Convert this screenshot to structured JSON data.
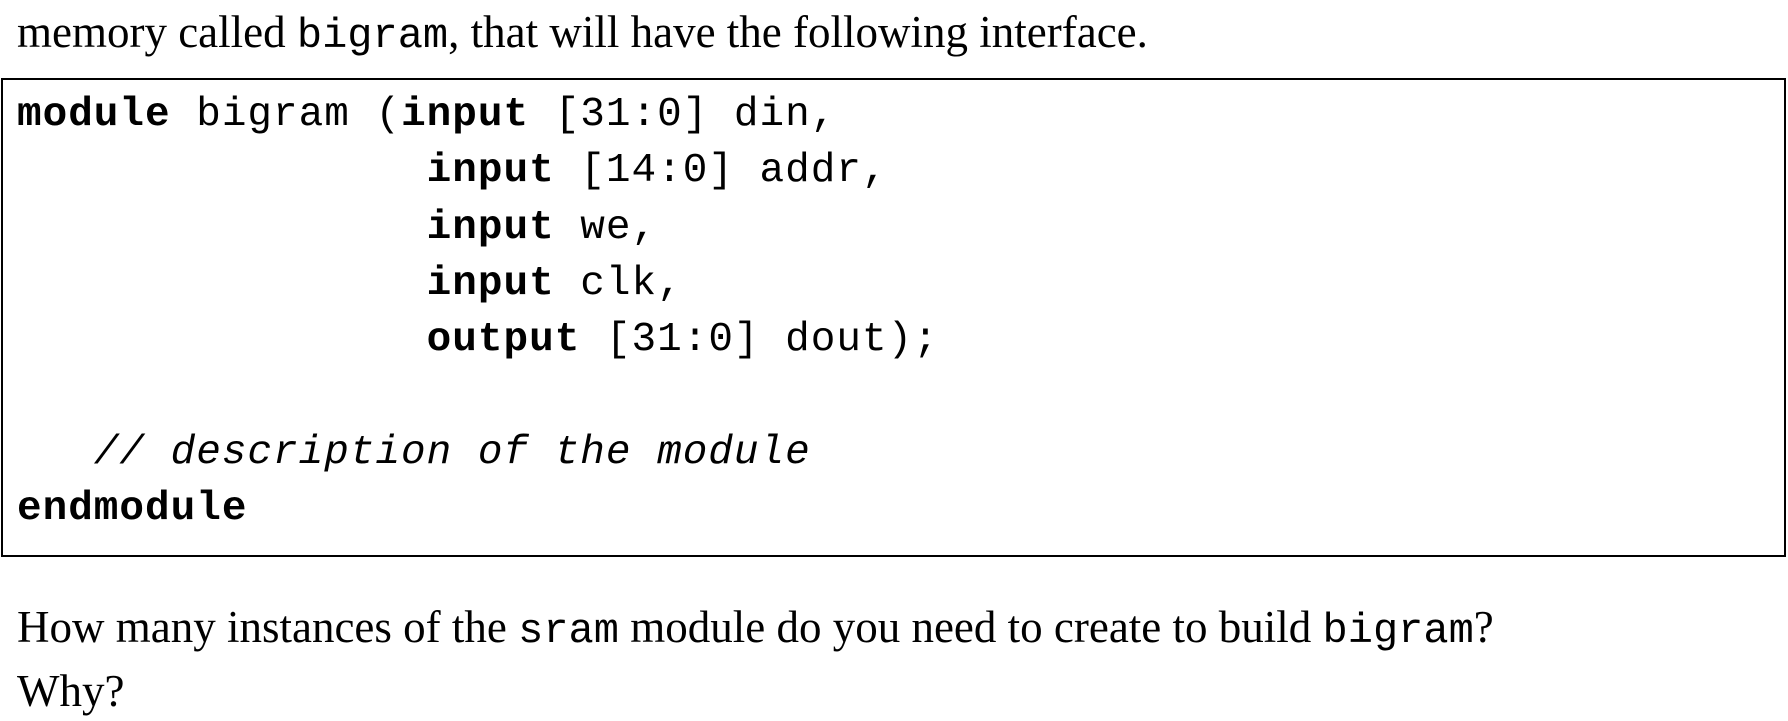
{
  "intro": {
    "before": "memory called ",
    "name": "bigram",
    "after": ", that will have the following interface."
  },
  "code": {
    "line1_kw": "module",
    "line1_name": " bigram (",
    "line1_kw2": "input",
    "line1_rest": " [31:0] din,",
    "indent": "                ",
    "line2_kw": "input",
    "line2_rest": " [14:0] addr,",
    "line3_kw": "input",
    "line3_rest": " we,",
    "line4_kw": "input",
    "line4_rest": " clk,",
    "line5_kw": "output",
    "line5_rest": " [31:0] dout);",
    "comment_indent": "   ",
    "comment": "// description of the module",
    "end_kw": "endmodule"
  },
  "question": {
    "line1_a": "How many instances of the ",
    "line1_sram": "sram",
    "line1_b": " module do you need to create to build ",
    "line1_bigram": "bigram",
    "line1_c": "?",
    "line2": "Why?"
  }
}
